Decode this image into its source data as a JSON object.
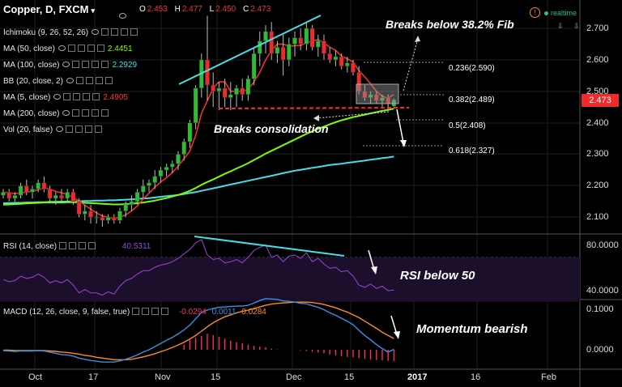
{
  "header": {
    "symbol": "Copper, D, FXCM",
    "ohlc": [
      {
        "k": "O",
        "v": "2.453"
      },
      {
        "k": "H",
        "v": "2.477"
      },
      {
        "k": "L",
        "v": "2.450"
      },
      {
        "k": "C",
        "v": "2.473"
      }
    ],
    "realtime_label": "realtime"
  },
  "indicators": [
    {
      "label": "Ichimoku (9, 26, 52, 26)",
      "value": "",
      "color": "#ffffff"
    },
    {
      "label": "MA (50, close)",
      "value": "2.4451",
      "color": "#7CFC00"
    },
    {
      "label": "MA (100, close)",
      "value": "2.2929",
      "color": "#3fe0e8"
    },
    {
      "label": "BB (20, close, 2)",
      "value": "",
      "color": "#ffffff"
    },
    {
      "label": "MA (5, close)",
      "value": "2.4905",
      "color": "#ff3030"
    },
    {
      "label": "MA (200, close)",
      "value": "",
      "color": "#ffffff"
    },
    {
      "label": "Vol (20, false)",
      "value": "",
      "color": "#ffffff"
    }
  ],
  "rsi_header": {
    "label": "RSI (14, close)",
    "value": "40.5311"
  },
  "macd_header": {
    "label": "MACD (12, 26, close, 9, false, true)",
    "values": [
      "-0.0294",
      "0.0011",
      "0.0284"
    ]
  },
  "annotations": {
    "fib_break": "Breaks below 38.2% Fib",
    "consolidation": "Breaks consolidation",
    "rsi": "RSI below 50",
    "macd": "Momentum bearish"
  },
  "fib_levels": [
    {
      "label": "0.236(2.590)",
      "price": 2.59
    },
    {
      "label": "0.382(2.489)",
      "price": 2.489
    },
    {
      "label": "0.5(2.408)",
      "price": 2.408
    },
    {
      "label": "0.618(2.327)",
      "price": 2.327
    }
  ],
  "price_axis": {
    "ticks": [
      "2.700",
      "2.600",
      "2.500",
      "2.400",
      "2.300",
      "2.200",
      "2.100"
    ],
    "last_price": "2.473"
  },
  "rsi_axis": {
    "ticks": [
      "80.0000",
      "40.0000"
    ]
  },
  "macd_axis": {
    "ticks": [
      "0.1000",
      "0.0000"
    ]
  },
  "time_axis": {
    "labels": [
      "Oct",
      "17",
      "Nov",
      "15",
      "Dec",
      "15",
      "2017",
      "16",
      "Feb"
    ]
  },
  "colors": {
    "up": "#2ebd2e",
    "down": "#ee2a2a",
    "ma5": "#ff3030",
    "ma50": "#7CFC00",
    "ma100": "#3fe0e8",
    "trendline": "#3fe0e8",
    "rsi": "#9b45d8",
    "macd": "#3a8fe8",
    "signal": "#ff8c1a",
    "hist": "#ff2a6a",
    "last_price_bg": "#ee2a2a"
  },
  "chart_data": {
    "type": "candlestick",
    "ylim": [
      2.05,
      2.76
    ],
    "candles": [
      [
        2.17,
        2.19,
        2.16,
        2.18
      ],
      [
        2.18,
        2.19,
        2.15,
        2.16
      ],
      [
        2.16,
        2.18,
        2.15,
        2.17
      ],
      [
        2.17,
        2.21,
        2.16,
        2.2
      ],
      [
        2.2,
        2.22,
        2.17,
        2.18
      ],
      [
        2.18,
        2.2,
        2.16,
        2.19
      ],
      [
        2.19,
        2.22,
        2.18,
        2.21
      ],
      [
        2.21,
        2.23,
        2.18,
        2.19
      ],
      [
        2.19,
        2.2,
        2.15,
        2.16
      ],
      [
        2.16,
        2.18,
        2.14,
        2.17
      ],
      [
        2.17,
        2.19,
        2.15,
        2.16
      ],
      [
        2.16,
        2.19,
        2.15,
        2.18
      ],
      [
        2.18,
        2.19,
        2.14,
        2.15
      ],
      [
        2.15,
        2.16,
        2.1,
        2.11
      ],
      [
        2.11,
        2.14,
        2.09,
        2.12
      ],
      [
        2.12,
        2.14,
        2.08,
        2.1
      ],
      [
        2.1,
        2.12,
        2.08,
        2.1
      ],
      [
        2.1,
        2.11,
        2.07,
        2.09
      ],
      [
        2.09,
        2.11,
        2.08,
        2.1
      ],
      [
        2.1,
        2.11,
        2.08,
        2.09
      ],
      [
        2.09,
        2.13,
        2.08,
        2.12
      ],
      [
        2.12,
        2.15,
        2.1,
        2.14
      ],
      [
        2.14,
        2.17,
        2.12,
        2.15
      ],
      [
        2.15,
        2.19,
        2.14,
        2.18
      ],
      [
        2.18,
        2.22,
        2.16,
        2.2
      ],
      [
        2.2,
        2.22,
        2.18,
        2.21
      ],
      [
        2.21,
        2.25,
        2.19,
        2.23
      ],
      [
        2.23,
        2.26,
        2.21,
        2.25
      ],
      [
        2.25,
        2.27,
        2.23,
        2.26
      ],
      [
        2.26,
        2.28,
        2.24,
        2.27
      ],
      [
        2.27,
        2.31,
        2.25,
        2.3
      ],
      [
        2.3,
        2.35,
        2.28,
        2.34
      ],
      [
        2.34,
        2.41,
        2.32,
        2.4
      ],
      [
        2.4,
        2.52,
        2.38,
        2.51
      ],
      [
        2.51,
        2.62,
        2.48,
        2.6
      ],
      [
        2.6,
        2.74,
        2.47,
        2.52
      ],
      [
        2.52,
        2.56,
        2.45,
        2.5
      ],
      [
        2.5,
        2.53,
        2.44,
        2.51
      ],
      [
        2.51,
        2.54,
        2.45,
        2.48
      ],
      [
        2.48,
        2.53,
        2.44,
        2.49
      ],
      [
        2.49,
        2.52,
        2.45,
        2.51
      ],
      [
        2.51,
        2.54,
        2.47,
        2.49
      ],
      [
        2.49,
        2.55,
        2.47,
        2.54
      ],
      [
        2.54,
        2.64,
        2.52,
        2.62
      ],
      [
        2.62,
        2.69,
        2.58,
        2.66
      ],
      [
        2.66,
        2.71,
        2.62,
        2.69
      ],
      [
        2.69,
        2.72,
        2.6,
        2.62
      ],
      [
        2.62,
        2.66,
        2.59,
        2.64
      ],
      [
        2.64,
        2.68,
        2.55,
        2.6
      ],
      [
        2.6,
        2.67,
        2.58,
        2.65
      ],
      [
        2.65,
        2.69,
        2.61,
        2.67
      ],
      [
        2.67,
        2.7,
        2.63,
        2.65
      ],
      [
        2.65,
        2.72,
        2.63,
        2.7
      ],
      [
        2.7,
        2.71,
        2.63,
        2.64
      ],
      [
        2.64,
        2.68,
        2.61,
        2.66
      ],
      [
        2.66,
        2.68,
        2.6,
        2.62
      ],
      [
        2.62,
        2.64,
        2.59,
        2.6
      ],
      [
        2.6,
        2.63,
        2.58,
        2.61
      ],
      [
        2.61,
        2.62,
        2.57,
        2.58
      ],
      [
        2.58,
        2.61,
        2.56,
        2.59
      ],
      [
        2.59,
        2.6,
        2.55,
        2.56
      ],
      [
        2.56,
        2.58,
        2.49,
        2.5
      ],
      [
        2.5,
        2.52,
        2.47,
        2.48
      ],
      [
        2.48,
        2.5,
        2.46,
        2.49
      ],
      [
        2.49,
        2.5,
        2.46,
        2.47
      ],
      [
        2.47,
        2.49,
        2.45,
        2.48
      ],
      [
        2.48,
        2.49,
        2.44,
        2.46
      ],
      [
        2.453,
        2.477,
        2.45,
        2.473
      ]
    ],
    "ma5": [
      2.18,
      2.177,
      2.175,
      2.178,
      2.18,
      2.182,
      2.188,
      2.192,
      2.19,
      2.182,
      2.178,
      2.172,
      2.163,
      2.152,
      2.138,
      2.126,
      2.114,
      2.104,
      2.1,
      2.096,
      2.1,
      2.108,
      2.12,
      2.136,
      2.158,
      2.176,
      2.196,
      2.212,
      2.226,
      2.242,
      2.262,
      2.286,
      2.31,
      2.36,
      2.43,
      2.47,
      2.51,
      2.53,
      2.53,
      2.5,
      2.5,
      2.5,
      2.506,
      2.53,
      2.56,
      2.6,
      2.63,
      2.65,
      2.65,
      2.643,
      2.645,
      2.646,
      2.654,
      2.66,
      2.664,
      2.654,
      2.64,
      2.63,
      2.612,
      2.603,
      2.593,
      2.566,
      2.546,
      2.524,
      2.5,
      2.484,
      2.478,
      2.4905
    ],
    "ma50": [
      2.14,
      2.141,
      2.142,
      2.143,
      2.144,
      2.145,
      2.146,
      2.147,
      2.147,
      2.147,
      2.147,
      2.148,
      2.148,
      2.147,
      2.146,
      2.145,
      2.144,
      2.143,
      2.142,
      2.141,
      2.141,
      2.142,
      2.143,
      2.145,
      2.147,
      2.15,
      2.153,
      2.157,
      2.161,
      2.166,
      2.171,
      2.177,
      2.184,
      2.193,
      2.203,
      2.212,
      2.22,
      2.229,
      2.238,
      2.246,
      2.255,
      2.263,
      2.272,
      2.282,
      2.292,
      2.302,
      2.311,
      2.32,
      2.329,
      2.338,
      2.347,
      2.356,
      2.365,
      2.373,
      2.381,
      2.388,
      2.395,
      2.402,
      2.408,
      2.413,
      2.418,
      2.422,
      2.426,
      2.43,
      2.434,
      2.438,
      2.441,
      2.4451
    ],
    "ma100": [
      2.145,
      2.145,
      2.146,
      2.146,
      2.147,
      2.147,
      2.148,
      2.148,
      2.149,
      2.149,
      2.15,
      2.15,
      2.151,
      2.151,
      2.152,
      2.152,
      2.153,
      2.153,
      2.154,
      2.154,
      2.155,
      2.156,
      2.157,
      2.158,
      2.16,
      2.161,
      2.163,
      2.165,
      2.167,
      2.169,
      2.171,
      2.174,
      2.177,
      2.18,
      2.184,
      2.188,
      2.192,
      2.196,
      2.2,
      2.204,
      2.208,
      2.212,
      2.216,
      2.22,
      2.224,
      2.228,
      2.232,
      2.236,
      2.24,
      2.244,
      2.248,
      2.251,
      2.254,
      2.257,
      2.26,
      2.263,
      2.266,
      2.268,
      2.27,
      2.273,
      2.275,
      2.278,
      2.28,
      2.283,
      2.285,
      2.288,
      2.29,
      2.2929
    ],
    "rsi": [
      50,
      48,
      49,
      53,
      51,
      52,
      55,
      52,
      47,
      49,
      47,
      50,
      45,
      38,
      41,
      38,
      38,
      36,
      39,
      37,
      44,
      49,
      51,
      55,
      58,
      58,
      61,
      63,
      64,
      66,
      69,
      73,
      77,
      83,
      86,
      72,
      68,
      69,
      65,
      66,
      68,
      65,
      70,
      76,
      79,
      81,
      70,
      72,
      66,
      71,
      72,
      69,
      74,
      66,
      69,
      64,
      60,
      61,
      57,
      58,
      53,
      45,
      43,
      46,
      42,
      44,
      40,
      40.5311
    ],
    "rsi_ylim": [
      33,
      95
    ],
    "macd": [
      -0.002,
      -0.003,
      -0.004,
      -0.003,
      -0.003,
      -0.003,
      -0.002,
      -0.003,
      -0.006,
      -0.009,
      -0.012,
      -0.013,
      -0.016,
      -0.021,
      -0.024,
      -0.027,
      -0.029,
      -0.031,
      -0.031,
      -0.031,
      -0.028,
      -0.024,
      -0.019,
      -0.013,
      -0.006,
      0.0,
      0.008,
      0.016,
      0.024,
      0.031,
      0.04,
      0.05,
      0.062,
      0.078,
      0.094,
      0.1,
      0.104,
      0.107,
      0.108,
      0.109,
      0.11,
      0.11,
      0.112,
      0.118,
      0.124,
      0.129,
      0.128,
      0.127,
      0.123,
      0.122,
      0.12,
      0.117,
      0.116,
      0.111,
      0.107,
      0.101,
      0.093,
      0.087,
      0.079,
      0.072,
      0.063,
      0.049,
      0.036,
      0.025,
      0.013,
      0.003,
      -0.006,
      0.0011
    ],
    "signal": [
      -0.001,
      -0.001,
      -0.002,
      -0.002,
      -0.002,
      -0.002,
      -0.002,
      -0.002,
      -0.003,
      -0.004,
      -0.006,
      -0.007,
      -0.009,
      -0.011,
      -0.014,
      -0.016,
      -0.019,
      -0.021,
      -0.023,
      -0.025,
      -0.025,
      -0.025,
      -0.024,
      -0.021,
      -0.018,
      -0.014,
      -0.01,
      -0.005,
      0.0,
      0.006,
      0.012,
      0.019,
      0.027,
      0.036,
      0.047,
      0.058,
      0.068,
      0.076,
      0.083,
      0.088,
      0.093,
      0.097,
      0.1,
      0.104,
      0.108,
      0.112,
      0.115,
      0.117,
      0.118,
      0.119,
      0.12,
      0.12,
      0.12,
      0.119,
      0.117,
      0.114,
      0.11,
      0.106,
      0.1,
      0.095,
      0.088,
      0.081,
      0.072,
      0.063,
      0.054,
      0.044,
      0.036,
      0.0284
    ],
    "macd_ylim": [
      -0.03,
      0.135
    ],
    "hist": [
      0,
      0,
      0,
      0,
      0,
      0,
      0,
      0,
      0,
      0,
      0,
      0,
      0,
      0,
      0,
      0,
      0,
      0,
      0,
      0,
      0,
      0,
      0,
      0,
      0,
      0,
      0,
      0,
      0,
      0,
      0,
      0.013,
      0.025,
      0.03,
      0.035,
      0.04,
      0.037,
      0.033,
      0.028,
      0.023,
      0.019,
      0.016,
      0.013,
      0.01,
      0.008,
      0.006,
      0.003,
      0.001,
      0,
      0,
      0,
      -0.001,
      -0.003,
      -0.005,
      -0.007,
      -0.009,
      -0.012,
      -0.014,
      -0.016,
      -0.018,
      -0.019,
      -0.021,
      -0.023,
      -0.025,
      -0.026,
      -0.027,
      -0.028,
      -0.0294
    ],
    "title": "Copper, D, FXCM"
  }
}
